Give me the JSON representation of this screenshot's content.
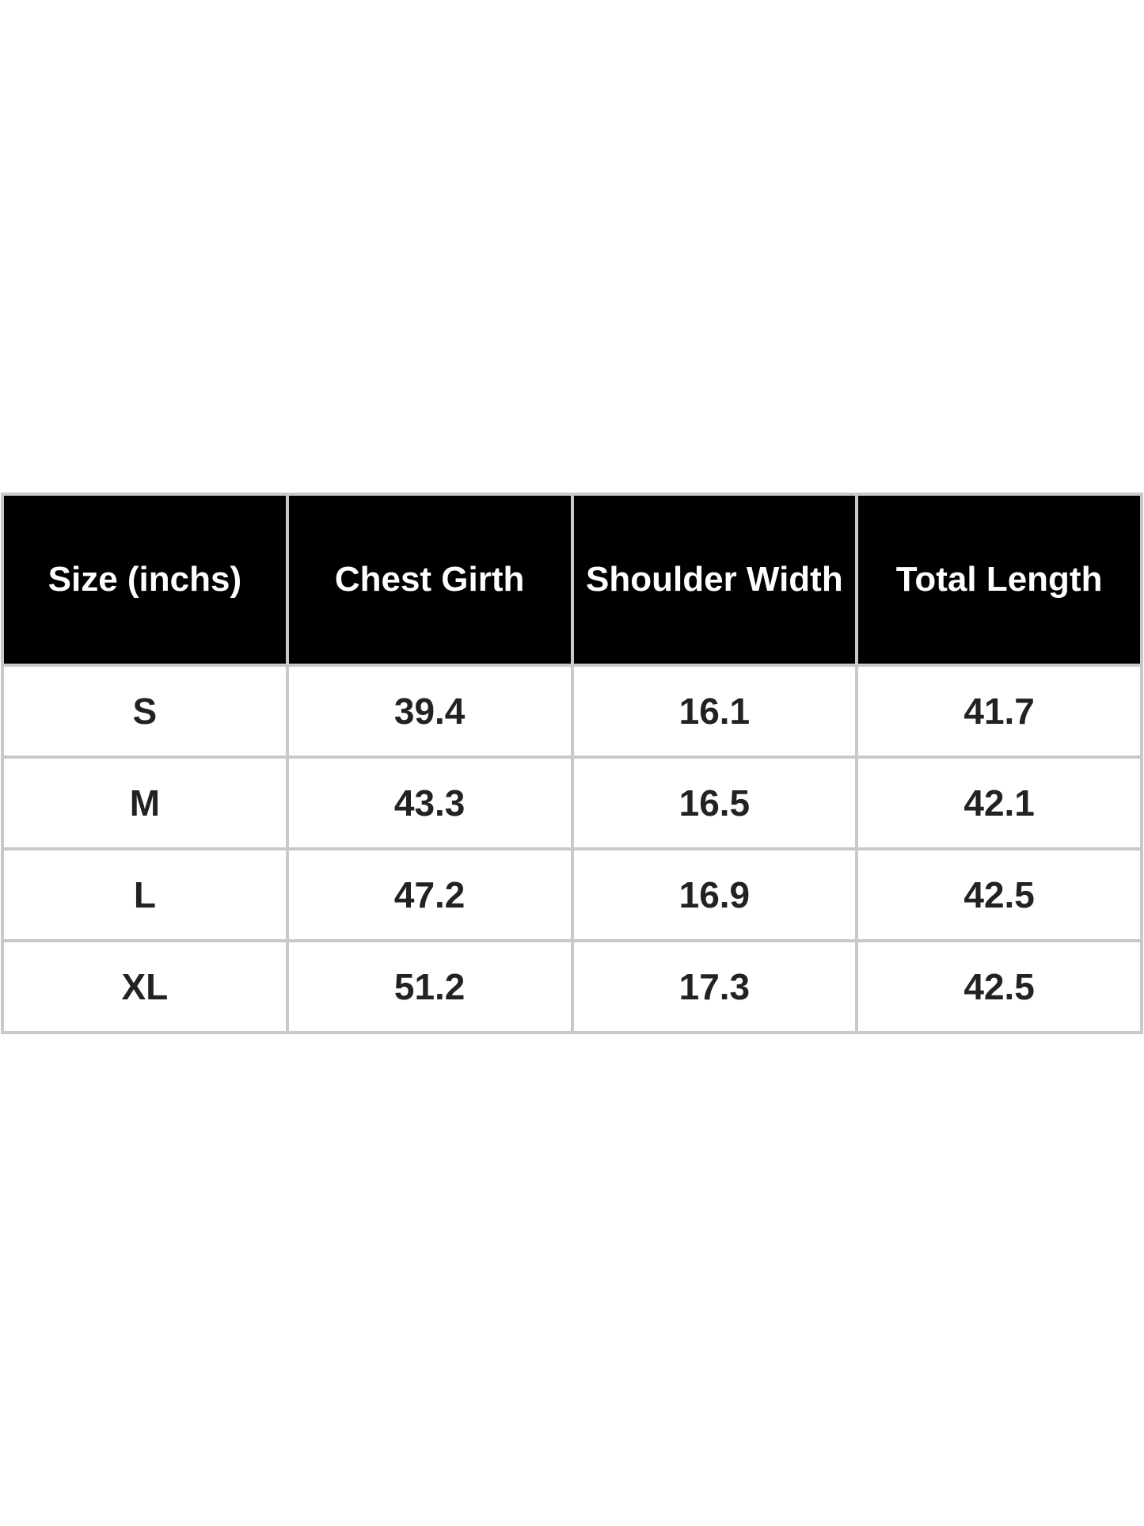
{
  "table": {
    "headers": [
      "Size (inchs)",
      "Chest Girth",
      "Shoulder Width",
      "Total Length"
    ],
    "rows": [
      [
        "S",
        "39.4",
        "16.1",
        "41.7"
      ],
      [
        "M",
        "43.3",
        "16.5",
        "42.1"
      ],
      [
        "L",
        "47.2",
        "16.9",
        "42.5"
      ],
      [
        "XL",
        "51.2",
        "17.3",
        "42.5"
      ]
    ]
  },
  "colors": {
    "header_bg": "#000000",
    "header_text": "#ffffff",
    "border": "#c9c9c9",
    "cell_text": "#222222"
  }
}
